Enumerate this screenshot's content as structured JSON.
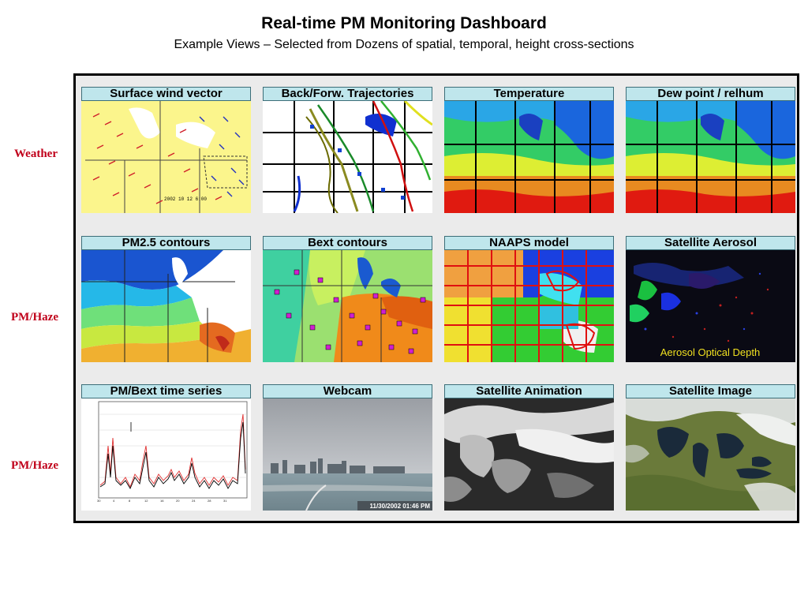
{
  "header": {
    "title": "Real-time PM Monitoring Dashboard",
    "subtitle": "Example Views – Selected from Dozens of spatial, temporal, height cross-sections"
  },
  "rows": [
    {
      "label": "Weather"
    },
    {
      "label": "PM/Haze"
    },
    {
      "label": "PM/Haze"
    }
  ],
  "panels": {
    "wind": {
      "title": "Surface wind vector",
      "timestamp": "2002 10 12 6:00"
    },
    "trajectories": {
      "title": "Back/Forw. Trajectories"
    },
    "temperature": {
      "title": "Temperature"
    },
    "dewpoint": {
      "title": "Dew point / relhum"
    },
    "pm25": {
      "title": "PM2.5 contours"
    },
    "bext": {
      "title": "Bext contours"
    },
    "naaps": {
      "title": "NAAPS model"
    },
    "aerosol": {
      "title": "Satellite Aerosol",
      "caption": "Aerosol Optical Depth"
    },
    "timeseries": {
      "title": "PM/Bext time series"
    },
    "webcam": {
      "title": "Webcam",
      "timestamp": "11/30/2002 01:46 PM"
    },
    "animation": {
      "title": "Satellite Animation"
    },
    "image": {
      "title": "Satellite Image"
    }
  },
  "colors": {
    "panel_title_bg": "#bfe6ec",
    "row_label": "#c0001a",
    "frame_bg": "#ebebeb"
  }
}
